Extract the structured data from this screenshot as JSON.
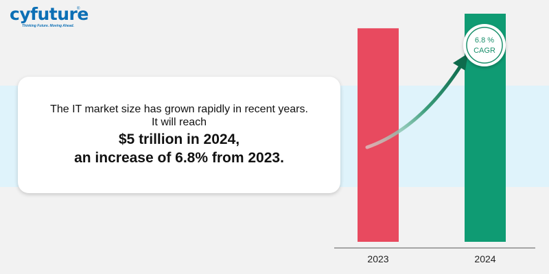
{
  "brand": {
    "name": "cyfuture",
    "registered": "®",
    "tagline": "Thinking Future. Moving Ahead.",
    "color": "#0c6fb5"
  },
  "message": {
    "line1": "The IT market size has grown rapidly in recent years.",
    "line2": "It will reach",
    "line3": "$5 trillion in 2024,",
    "line4": "an increase of 6.8% from 2023."
  },
  "badge": {
    "value": "6.8 %",
    "label": "CAGR",
    "color": "#1a8f6b"
  },
  "chart_data": {
    "type": "bar",
    "categories": [
      "2023",
      "2024"
    ],
    "values": [
      4.68,
      5.0
    ],
    "ylim": [
      0,
      5.3
    ],
    "colors": [
      "#e84a5f",
      "#0f9b73"
    ],
    "grid": false,
    "title": "",
    "xlabel": "",
    "ylabel": ""
  }
}
